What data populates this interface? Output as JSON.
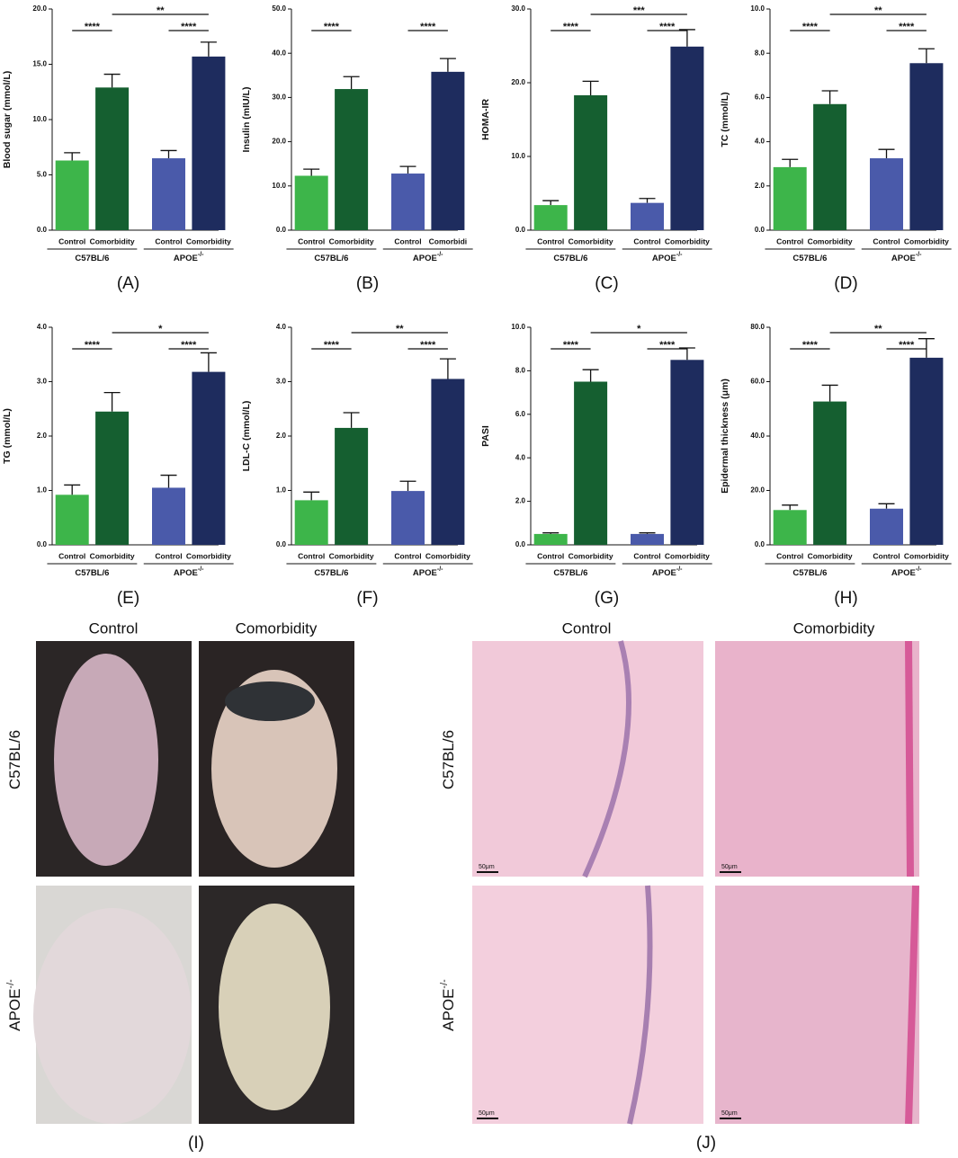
{
  "chart_data": [
    {
      "type": "bar",
      "panel_label": "(A)",
      "y_label": "Blood sugar (mmol/L)",
      "categories": [
        "Control",
        "Comorbidity",
        "Control",
        "Comorbidity"
      ],
      "groups": [
        {
          "label": "C57BL/6"
        },
        {
          "label": "APOE",
          "superscript": "-/-"
        }
      ],
      "values": [
        6.3,
        12.9,
        6.5,
        15.7
      ],
      "errors": [
        0.7,
        1.2,
        0.7,
        1.3
      ],
      "colors": [
        "#3db54a",
        "#155f30",
        "#4a5aaa",
        "#1e2c5e"
      ],
      "ylim": [
        0,
        20
      ],
      "yticks": [
        {
          "value": 0,
          "label": "0.0"
        },
        {
          "value": 5,
          "label": "5.0"
        },
        {
          "value": 10,
          "label": "10.0"
        },
        {
          "value": 15,
          "label": "15.0"
        },
        {
          "value": 20,
          "label": "20.0"
        }
      ],
      "significance": [
        {
          "pair": [
            0,
            1
          ],
          "label": "****"
        },
        {
          "pair": [
            2,
            3
          ],
          "label": "****"
        },
        {
          "pair": [
            1,
            3
          ],
          "label": "**"
        }
      ]
    },
    {
      "type": "bar",
      "panel_label": "(B)",
      "y_label": "Insulin (mIU/L)",
      "categories": [
        "Control",
        "Comorbidity",
        "Control",
        "Comorbidi"
      ],
      "groups": [
        {
          "label": "C57BL/6"
        },
        {
          "label": "APOE",
          "superscript": "-/-"
        }
      ],
      "values": [
        12.3,
        31.9,
        12.8,
        35.8
      ],
      "errors": [
        1.5,
        2.8,
        1.6,
        3.0
      ],
      "colors": [
        "#3db54a",
        "#155f30",
        "#4a5aaa",
        "#1e2c5e"
      ],
      "ylim": [
        0,
        50
      ],
      "yticks": [
        {
          "value": 0,
          "label": "0.0"
        },
        {
          "value": 10,
          "label": "10.0"
        },
        {
          "value": 20,
          "label": "20.0"
        },
        {
          "value": 30,
          "label": "30.0"
        },
        {
          "value": 40,
          "label": "40.0"
        },
        {
          "value": 50,
          "label": "50.0"
        }
      ],
      "significance": [
        {
          "pair": [
            0,
            1
          ],
          "label": "****"
        },
        {
          "pair": [
            2,
            3
          ],
          "label": "****"
        }
      ]
    },
    {
      "type": "bar",
      "panel_label": "(C)",
      "y_label": "HOMA-IR",
      "categories": [
        "Control",
        "Comorbidity",
        "Control",
        "Comorbidity"
      ],
      "groups": [
        {
          "label": "C57BL/6"
        },
        {
          "label": "APOE",
          "superscript": "-/-"
        }
      ],
      "values": [
        3.4,
        18.3,
        3.7,
        24.9
      ],
      "errors": [
        0.6,
        1.9,
        0.6,
        2.3
      ],
      "colors": [
        "#3db54a",
        "#155f30",
        "#4a5aaa",
        "#1e2c5e"
      ],
      "ylim": [
        0,
        30
      ],
      "yticks": [
        {
          "value": 0,
          "label": "0.0"
        },
        {
          "value": 10,
          "label": "10.0"
        },
        {
          "value": 20,
          "label": "20.0"
        },
        {
          "value": 30,
          "label": "30.0"
        }
      ],
      "significance": [
        {
          "pair": [
            0,
            1
          ],
          "label": "****"
        },
        {
          "pair": [
            2,
            3
          ],
          "label": "****"
        },
        {
          "pair": [
            1,
            3
          ],
          "label": "***"
        }
      ]
    },
    {
      "type": "bar",
      "panel_label": "(D)",
      "y_label": "TC (mmol/L)",
      "categories": [
        "Control",
        "Comorbidity",
        "Control",
        "Comorbidity"
      ],
      "groups": [
        {
          "label": "C57BL/6"
        },
        {
          "label": "APOE",
          "superscript": "-/-"
        }
      ],
      "values": [
        2.85,
        5.7,
        3.25,
        7.55
      ],
      "errors": [
        0.35,
        0.6,
        0.4,
        0.65
      ],
      "colors": [
        "#3db54a",
        "#155f30",
        "#4a5aaa",
        "#1e2c5e"
      ],
      "ylim": [
        0,
        10
      ],
      "yticks": [
        {
          "value": 0,
          "label": "0.0"
        },
        {
          "value": 2,
          "label": "2.0"
        },
        {
          "value": 4,
          "label": "4.0"
        },
        {
          "value": 6,
          "label": "6.0"
        },
        {
          "value": 8,
          "label": "8.0"
        },
        {
          "value": 10,
          "label": "10.0"
        }
      ],
      "significance": [
        {
          "pair": [
            0,
            1
          ],
          "label": "****"
        },
        {
          "pair": [
            2,
            3
          ],
          "label": "****"
        },
        {
          "pair": [
            1,
            3
          ],
          "label": "**"
        }
      ]
    },
    {
      "type": "bar",
      "panel_label": "(E)",
      "y_label": "TG (mmol/L)",
      "categories": [
        "Control",
        "Comorbidity",
        "Control",
        "Comorbidity"
      ],
      "groups": [
        {
          "label": "C57BL/6"
        },
        {
          "label": "APOE",
          "superscript": "-/-"
        }
      ],
      "values": [
        0.92,
        2.45,
        1.05,
        3.18
      ],
      "errors": [
        0.18,
        0.35,
        0.23,
        0.35
      ],
      "colors": [
        "#3db54a",
        "#155f30",
        "#4a5aaa",
        "#1e2c5e"
      ],
      "ylim": [
        0,
        4
      ],
      "yticks": [
        {
          "value": 0,
          "label": "0.0"
        },
        {
          "value": 1,
          "label": "1.0"
        },
        {
          "value": 2,
          "label": "2.0"
        },
        {
          "value": 3,
          "label": "3.0"
        },
        {
          "value": 4,
          "label": "4.0"
        }
      ],
      "significance": [
        {
          "pair": [
            0,
            1
          ],
          "label": "****"
        },
        {
          "pair": [
            2,
            3
          ],
          "label": "****"
        },
        {
          "pair": [
            1,
            3
          ],
          "label": "*"
        }
      ]
    },
    {
      "type": "bar",
      "panel_label": "(F)",
      "y_label": "LDL-C (mmol/L)",
      "categories": [
        "Control",
        "Comorbidity",
        "Control",
        "Comorbidity"
      ],
      "groups": [
        {
          "label": "C57BL/6"
        },
        {
          "label": "APOE",
          "superscript": "-/-"
        }
      ],
      "values": [
        0.82,
        2.15,
        0.99,
        3.05
      ],
      "errors": [
        0.15,
        0.28,
        0.18,
        0.37
      ],
      "colors": [
        "#3db54a",
        "#155f30",
        "#4a5aaa",
        "#1e2c5e"
      ],
      "ylim": [
        0,
        4
      ],
      "yticks": [
        {
          "value": 0,
          "label": "0.0"
        },
        {
          "value": 1,
          "label": "1.0"
        },
        {
          "value": 2,
          "label": "2.0"
        },
        {
          "value": 3,
          "label": "3.0"
        },
        {
          "value": 4,
          "label": "4.0"
        }
      ],
      "significance": [
        {
          "pair": [
            0,
            1
          ],
          "label": "****"
        },
        {
          "pair": [
            2,
            3
          ],
          "label": "****"
        },
        {
          "pair": [
            1,
            3
          ],
          "label": "**"
        }
      ]
    },
    {
      "type": "bar",
      "panel_label": "(G)",
      "y_label": "PASI",
      "categories": [
        "Control",
        "Comorbidity",
        "Control",
        "Comorbidity"
      ],
      "groups": [
        {
          "label": "C57BL/6"
        },
        {
          "label": "APOE",
          "superscript": "-/-"
        }
      ],
      "values": [
        0.5,
        7.5,
        0.5,
        8.5
      ],
      "errors": [
        0.05,
        0.55,
        0.05,
        0.55
      ],
      "colors": [
        "#3db54a",
        "#155f30",
        "#4a5aaa",
        "#1e2c5e"
      ],
      "ylim": [
        0,
        10
      ],
      "yticks": [
        {
          "value": 0,
          "label": "0.0"
        },
        {
          "value": 2,
          "label": "2.0"
        },
        {
          "value": 4,
          "label": "4.0"
        },
        {
          "value": 6,
          "label": "6.0"
        },
        {
          "value": 8,
          "label": "8.0"
        },
        {
          "value": 10,
          "label": "10.0"
        }
      ],
      "significance": [
        {
          "pair": [
            0,
            1
          ],
          "label": "****"
        },
        {
          "pair": [
            2,
            3
          ],
          "label": "****"
        },
        {
          "pair": [
            1,
            3
          ],
          "label": "*"
        }
      ]
    },
    {
      "type": "bar",
      "panel_label": "(H)",
      "y_label": "Epidermal thickness (μm)",
      "categories": [
        "Control",
        "Comorbidity",
        "Control",
        "Comorbidity"
      ],
      "groups": [
        {
          "label": "C57BL/6"
        },
        {
          "label": "APOE",
          "superscript": "-/-"
        }
      ],
      "values": [
        12.8,
        52.7,
        13.3,
        68.8
      ],
      "errors": [
        1.8,
        6.0,
        1.8,
        7.0
      ],
      "colors": [
        "#3db54a",
        "#155f30",
        "#4a5aaa",
        "#1e2c5e"
      ],
      "ylim": [
        0,
        80
      ],
      "yticks": [
        {
          "value": 0,
          "label": "0.0"
        },
        {
          "value": 20,
          "label": "20.0"
        },
        {
          "value": 40,
          "label": "40.0"
        },
        {
          "value": 60,
          "label": "60.0"
        },
        {
          "value": 80,
          "label": "80.0"
        }
      ],
      "significance": [
        {
          "pair": [
            0,
            1
          ],
          "label": "****"
        },
        {
          "pair": [
            2,
            3
          ],
          "label": "****"
        },
        {
          "pair": [
            1,
            3
          ],
          "label": "**"
        }
      ]
    }
  ],
  "photo_panels": [
    {
      "panel_label": "(I)",
      "columns": [
        "Control",
        "Comorbidity"
      ],
      "rows": [
        {
          "label": "C57BL/6"
        },
        {
          "label": "APOE",
          "superscript": "-/-"
        }
      ]
    },
    {
      "panel_label": "(J)",
      "columns": [
        "Control",
        "Comorbidity"
      ],
      "rows": [
        {
          "label": "C57BL/6"
        },
        {
          "label": "APOE",
          "superscript": "-/-"
        }
      ],
      "scale_bar": "50μm"
    }
  ]
}
